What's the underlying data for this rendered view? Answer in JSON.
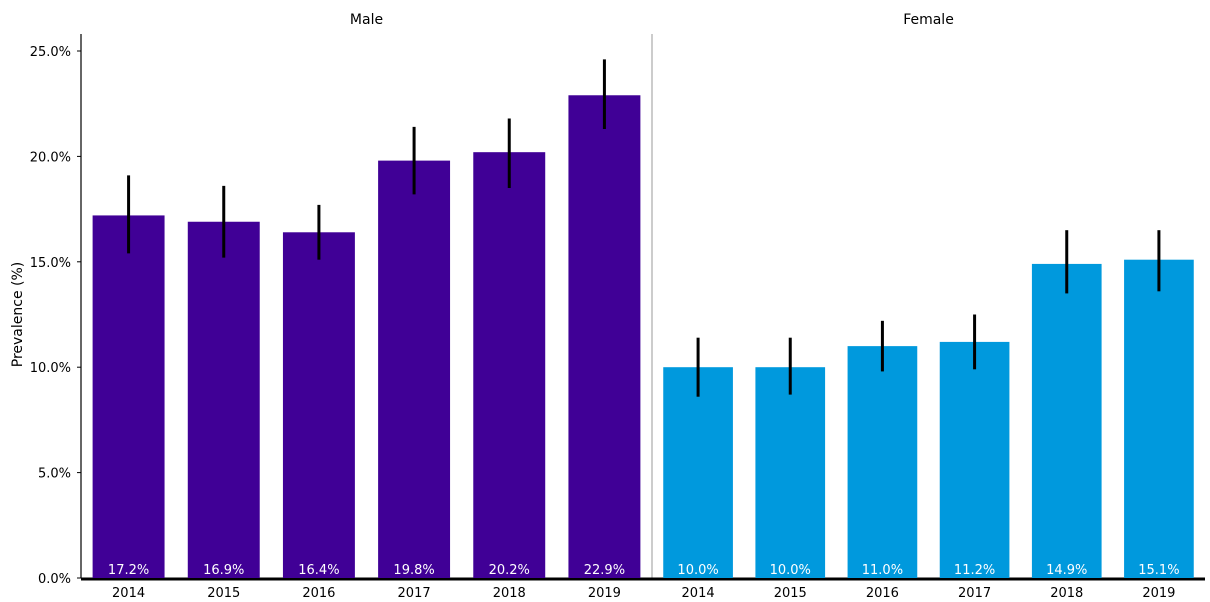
{
  "chart_data": {
    "type": "bar",
    "ylabel": "Prevalence (%)",
    "ylim": [
      0,
      25
    ],
    "yticks": [
      "0.0%",
      "5.0%",
      "10.0%",
      "15.0%",
      "20.0%",
      "25.0%"
    ],
    "ytick_values": [
      0,
      5,
      10,
      15,
      20,
      25
    ],
    "grid": false,
    "panels": [
      {
        "title": "Male",
        "color": "#400096",
        "categories": [
          "2014",
          "2015",
          "2016",
          "2017",
          "2018",
          "2019"
        ],
        "values": [
          17.2,
          16.9,
          16.4,
          19.8,
          20.2,
          22.9
        ],
        "value_labels": [
          "17.2%",
          "16.9%",
          "16.4%",
          "19.8%",
          "20.2%",
          "22.9%"
        ],
        "ci_low": [
          15.4,
          15.2,
          15.1,
          18.2,
          18.5,
          21.3
        ],
        "ci_high": [
          19.1,
          18.6,
          17.7,
          21.4,
          21.8,
          24.6
        ]
      },
      {
        "title": "Female",
        "color": "#0099dd",
        "categories": [
          "2014",
          "2015",
          "2016",
          "2017",
          "2018",
          "2019"
        ],
        "values": [
          10.0,
          10.0,
          11.0,
          11.2,
          14.9,
          15.1
        ],
        "value_labels": [
          "10.0%",
          "10.0%",
          "11.0%",
          "11.2%",
          "14.9%",
          "15.1%"
        ],
        "ci_low": [
          8.6,
          8.7,
          9.8,
          9.9,
          13.5,
          13.6
        ],
        "ci_high": [
          11.4,
          11.4,
          12.2,
          12.5,
          16.5,
          16.5
        ]
      }
    ]
  }
}
